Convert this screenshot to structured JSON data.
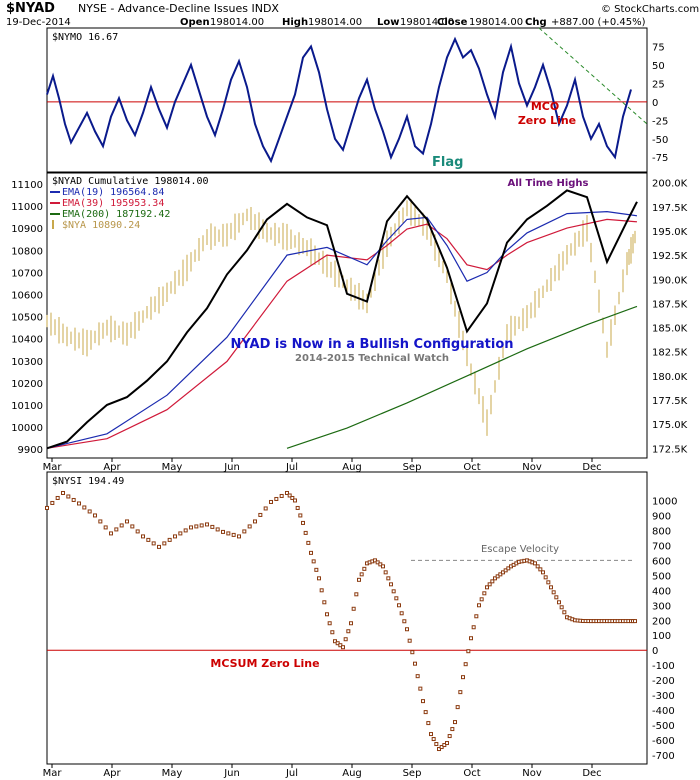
{
  "header": {
    "symbol": "$NYAD",
    "description": "NYSE - Advance-Decline Issues INDX",
    "date": "19-Dec-2014",
    "open_label": "Open",
    "open_value": "198014.00",
    "high_label": "High",
    "high_value": "198014.00",
    "low_label": "Low",
    "low_value": "198014.00",
    "close_label": "Close",
    "close_value": "198014.00",
    "chg_label": "Chg",
    "chg_value": "+887.00 (+0.45%)",
    "brand": "© StockCharts.com"
  },
  "colors": {
    "nymo": "#0a1a8c",
    "nyad": "#000000",
    "ema19": "#1c2bb0",
    "ema39": "#d01a3a",
    "ema200": "#1c6a12",
    "nya": "#c8a84b",
    "nysi": "#8b3a0f",
    "zero_line": "#cc0000",
    "dashed_green": "#2a8a2a",
    "annotation_blue": "#1414c8",
    "annotation_purple": "#6a0f7a",
    "flag_teal": "#1a8a7a",
    "gray_text": "#777777"
  },
  "months": [
    "Mar",
    "Apr",
    "May",
    "Jun",
    "Jul",
    "Aug",
    "Sep",
    "Oct",
    "Nov",
    "Dec"
  ],
  "chart_data": [
    {
      "type": "line",
      "title": "$NYMO 16.67",
      "series": [
        {
          "name": "$NYMO",
          "x": [
            0,
            3,
            6,
            9,
            12,
            16,
            20,
            24,
            28,
            32,
            36,
            40,
            44,
            48,
            52,
            56,
            60,
            64,
            68,
            72,
            76,
            80,
            84,
            88,
            92,
            96,
            100,
            104,
            108,
            112,
            116,
            120,
            124,
            128,
            132,
            136,
            140,
            144,
            148,
            152,
            156,
            160,
            164,
            168,
            172,
            176,
            180,
            184,
            188,
            192,
            196,
            200,
            204,
            208,
            212,
            216,
            220,
            224,
            228,
            232,
            236,
            240,
            244,
            248,
            252,
            256,
            260,
            264,
            268,
            272,
            276,
            280,
            284,
            288,
            292
          ],
          "values": [
            10,
            35,
            5,
            -30,
            -55,
            -35,
            -15,
            -40,
            -60,
            -20,
            5,
            -25,
            -45,
            -15,
            20,
            -10,
            -35,
            0,
            25,
            50,
            15,
            -20,
            -45,
            -10,
            30,
            55,
            20,
            -30,
            -60,
            -80,
            -50,
            -20,
            10,
            60,
            75,
            40,
            -10,
            -50,
            -65,
            -30,
            5,
            30,
            -10,
            -40,
            -75,
            -50,
            -20,
            -60,
            -70,
            -30,
            20,
            60,
            85,
            60,
            70,
            45,
            10,
            -20,
            40,
            75,
            25,
            -5,
            20,
            50,
            15,
            -30,
            -5,
            30,
            -20,
            -50,
            -30,
            -60,
            -75,
            -20,
            16.67
          ]
        }
      ],
      "y_ticks": [
        75,
        50,
        25,
        0,
        -25,
        -50,
        -75
      ],
      "ylim": [
        -95,
        100
      ],
      "annotations": {
        "zero_label_1": "MCO",
        "zero_label_2": "Zero Line",
        "flag": "Flag"
      }
    },
    {
      "type": "line",
      "title": "$NYAD Cumulative 198014.00",
      "series": [
        {
          "name": "$NYAD Cumulative 198014.00",
          "x": [
            0,
            10,
            20,
            30,
            40,
            50,
            60,
            70,
            80,
            90,
            100,
            110,
            120,
            130,
            140,
            150,
            160,
            170,
            180,
            190,
            200,
            210,
            220,
            230,
            240,
            250,
            260,
            270,
            280,
            290,
            295
          ],
          "values": [
            172500,
            173200,
            175200,
            177000,
            177800,
            179500,
            181500,
            184500,
            187000,
            190500,
            193000,
            196200,
            197800,
            196400,
            195600,
            188500,
            187700,
            196000,
            198600,
            196200,
            191200,
            184600,
            187500,
            193800,
            196200,
            197600,
            199200,
            198500,
            191800,
            196000,
            198014
          ]
        },
        {
          "name": "EMA(19) 196564.84",
          "x": [
            0,
            30,
            60,
            90,
            120,
            140,
            160,
            170,
            180,
            190,
            200,
            210,
            220,
            230,
            240,
            260,
            280,
            295
          ],
          "values": [
            172500,
            174000,
            178000,
            184000,
            192500,
            193300,
            191500,
            194000,
            196200,
            196400,
            193500,
            189800,
            190700,
            193000,
            194800,
            196800,
            197000,
            196565
          ]
        },
        {
          "name": "EMA(39) 195953.34",
          "x": [
            0,
            30,
            60,
            90,
            120,
            140,
            160,
            170,
            180,
            190,
            200,
            210,
            220,
            230,
            240,
            260,
            280,
            295
          ],
          "values": [
            172500,
            173500,
            176500,
            181500,
            189800,
            192500,
            192000,
            193500,
            195200,
            195700,
            194200,
            191500,
            191000,
            192500,
            193800,
            195300,
            196200,
            195953
          ]
        },
        {
          "name": "EMA(200) 187192.42",
          "x": [
            120,
            150,
            180,
            210,
            240,
            270,
            295
          ],
          "values": [
            172500,
            174600,
            177200,
            180000,
            182800,
            185300,
            187192
          ]
        },
        {
          "name": "$NYA 10890.24",
          "x": [
            0,
            10,
            20,
            30,
            40,
            50,
            60,
            70,
            80,
            90,
            100,
            110,
            120,
            130,
            140,
            150,
            160,
            170,
            180,
            190,
            200,
            210,
            220,
            230,
            240,
            250,
            260,
            270,
            280,
            290,
            295
          ],
          "values": [
            10480,
            10410,
            10380,
            10450,
            10420,
            10520,
            10610,
            10720,
            10860,
            10870,
            10960,
            10880,
            10860,
            10810,
            10730,
            10640,
            10560,
            10830,
            10990,
            10900,
            10680,
            10320,
            10020,
            10430,
            10500,
            10640,
            10780,
            10900,
            10350,
            10740,
            10890
          ]
        }
      ],
      "y_ticks_left": [
        11100,
        11000,
        10900,
        10800,
        10700,
        10600,
        10500,
        10400,
        10300,
        10200,
        10100,
        10000,
        9900
      ],
      "y_ticks_right": [
        "200.0K",
        "197.5K",
        "195.0K",
        "192.5K",
        "190.0K",
        "187.5K",
        "185.0K",
        "182.5K",
        "180.0K",
        "177.5K",
        "175.0K",
        "172.5K"
      ],
      "annotations": {
        "all_time_highs": "All Time Highs",
        "bullish": "NYAD is Now in a Bullish Configuration",
        "subtitle": "2014-2015 Technical Watch"
      }
    },
    {
      "type": "scatter",
      "title": "$NYSI 194.49",
      "series": [
        {
          "name": "$NYSI",
          "x": [
            0,
            8,
            16,
            24,
            32,
            40,
            48,
            56,
            64,
            72,
            80,
            88,
            96,
            104,
            112,
            120,
            124,
            128,
            132,
            136,
            140,
            144,
            148,
            152,
            156,
            160,
            164,
            168,
            172,
            176,
            180,
            184,
            188,
            192,
            196,
            200,
            204,
            208,
            212,
            216,
            220,
            224,
            228,
            232,
            236,
            240,
            244,
            248,
            252,
            256,
            260,
            264,
            268,
            272,
            276,
            280,
            284,
            288,
            292,
            295
          ],
          "values": [
            950,
            1050,
            980,
            900,
            780,
            860,
            760,
            690,
            760,
            820,
            840,
            790,
            760,
            860,
            990,
            1050,
            1000,
            850,
            650,
            480,
            240,
            60,
            20,
            180,
            470,
            580,
            600,
            560,
            440,
            300,
            140,
            -90,
            -340,
            -560,
            -660,
            -620,
            -480,
            -180,
            80,
            300,
            420,
            480,
            520,
            560,
            590,
            600,
            580,
            520,
            420,
            320,
            220,
            200,
            195,
            194.49,
            194.49,
            194.49,
            194.49,
            194.49,
            194.49,
            194.49
          ],
          "n": 60
        }
      ],
      "y_ticks": [
        1000,
        900,
        800,
        700,
        600,
        500,
        400,
        300,
        200,
        100,
        0,
        -100,
        -200,
        -300,
        -400,
        -500,
        -600,
        -700
      ],
      "annotations": {
        "escape_velocity": "Escape Velocity",
        "zero_line": "MCSUM Zero Line"
      }
    }
  ]
}
